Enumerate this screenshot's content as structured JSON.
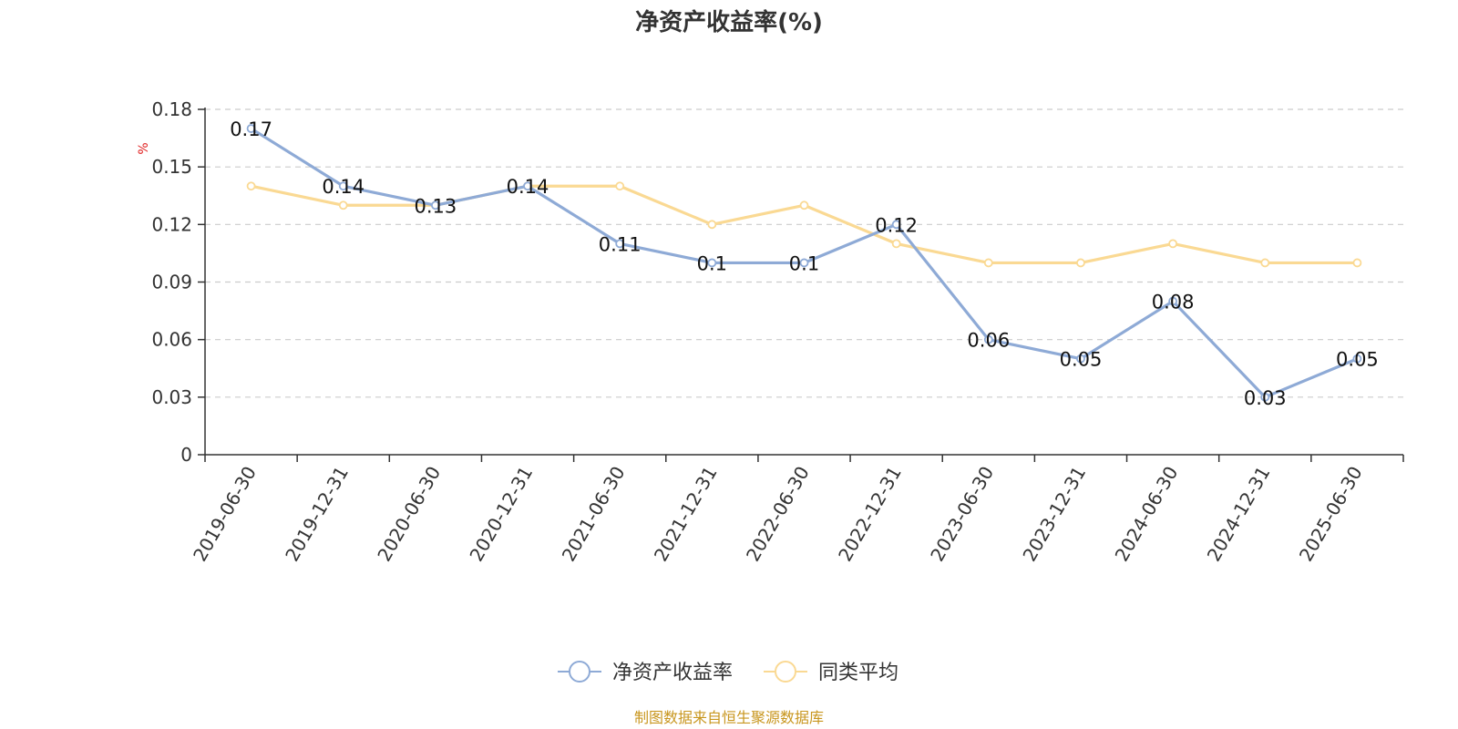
{
  "chart_data": {
    "type": "line",
    "title": "净资产收益率(%)",
    "ylabel": "%",
    "xlabel": "",
    "ylim": [
      0,
      0.18
    ],
    "yticks": [
      "0",
      "0.03",
      "0.06",
      "0.09",
      "0.12",
      "0.15",
      "0.18"
    ],
    "grid": true,
    "legend_position": "bottom",
    "categories": [
      "2019-06-30",
      "2019-12-31",
      "2020-06-30",
      "2020-12-31",
      "2021-06-30",
      "2021-12-31",
      "2022-06-30",
      "2022-12-31",
      "2023-06-30",
      "2023-12-31",
      "2024-06-30",
      "2024-12-31",
      "2025-06-30"
    ],
    "series": [
      {
        "name": "净资产收益率",
        "color": "#8eaad6",
        "values": [
          0.17,
          0.14,
          0.13,
          0.14,
          0.11,
          0.1,
          0.1,
          0.12,
          0.06,
          0.05,
          0.08,
          0.03,
          0.05
        ],
        "labels": [
          "0.17",
          "0.14",
          "0.13",
          "0.14",
          "0.11",
          "0.1",
          "0.1",
          "0.12",
          "0.06",
          "0.05",
          "0.08",
          "0.03",
          "0.05"
        ]
      },
      {
        "name": "同类平均",
        "color": "#fad993",
        "values": [
          0.14,
          0.13,
          0.13,
          0.14,
          0.14,
          0.12,
          0.13,
          0.11,
          0.1,
          0.1,
          0.11,
          0.1,
          0.1
        ]
      }
    ],
    "source": "制图数据来自恒生聚源数据库"
  }
}
